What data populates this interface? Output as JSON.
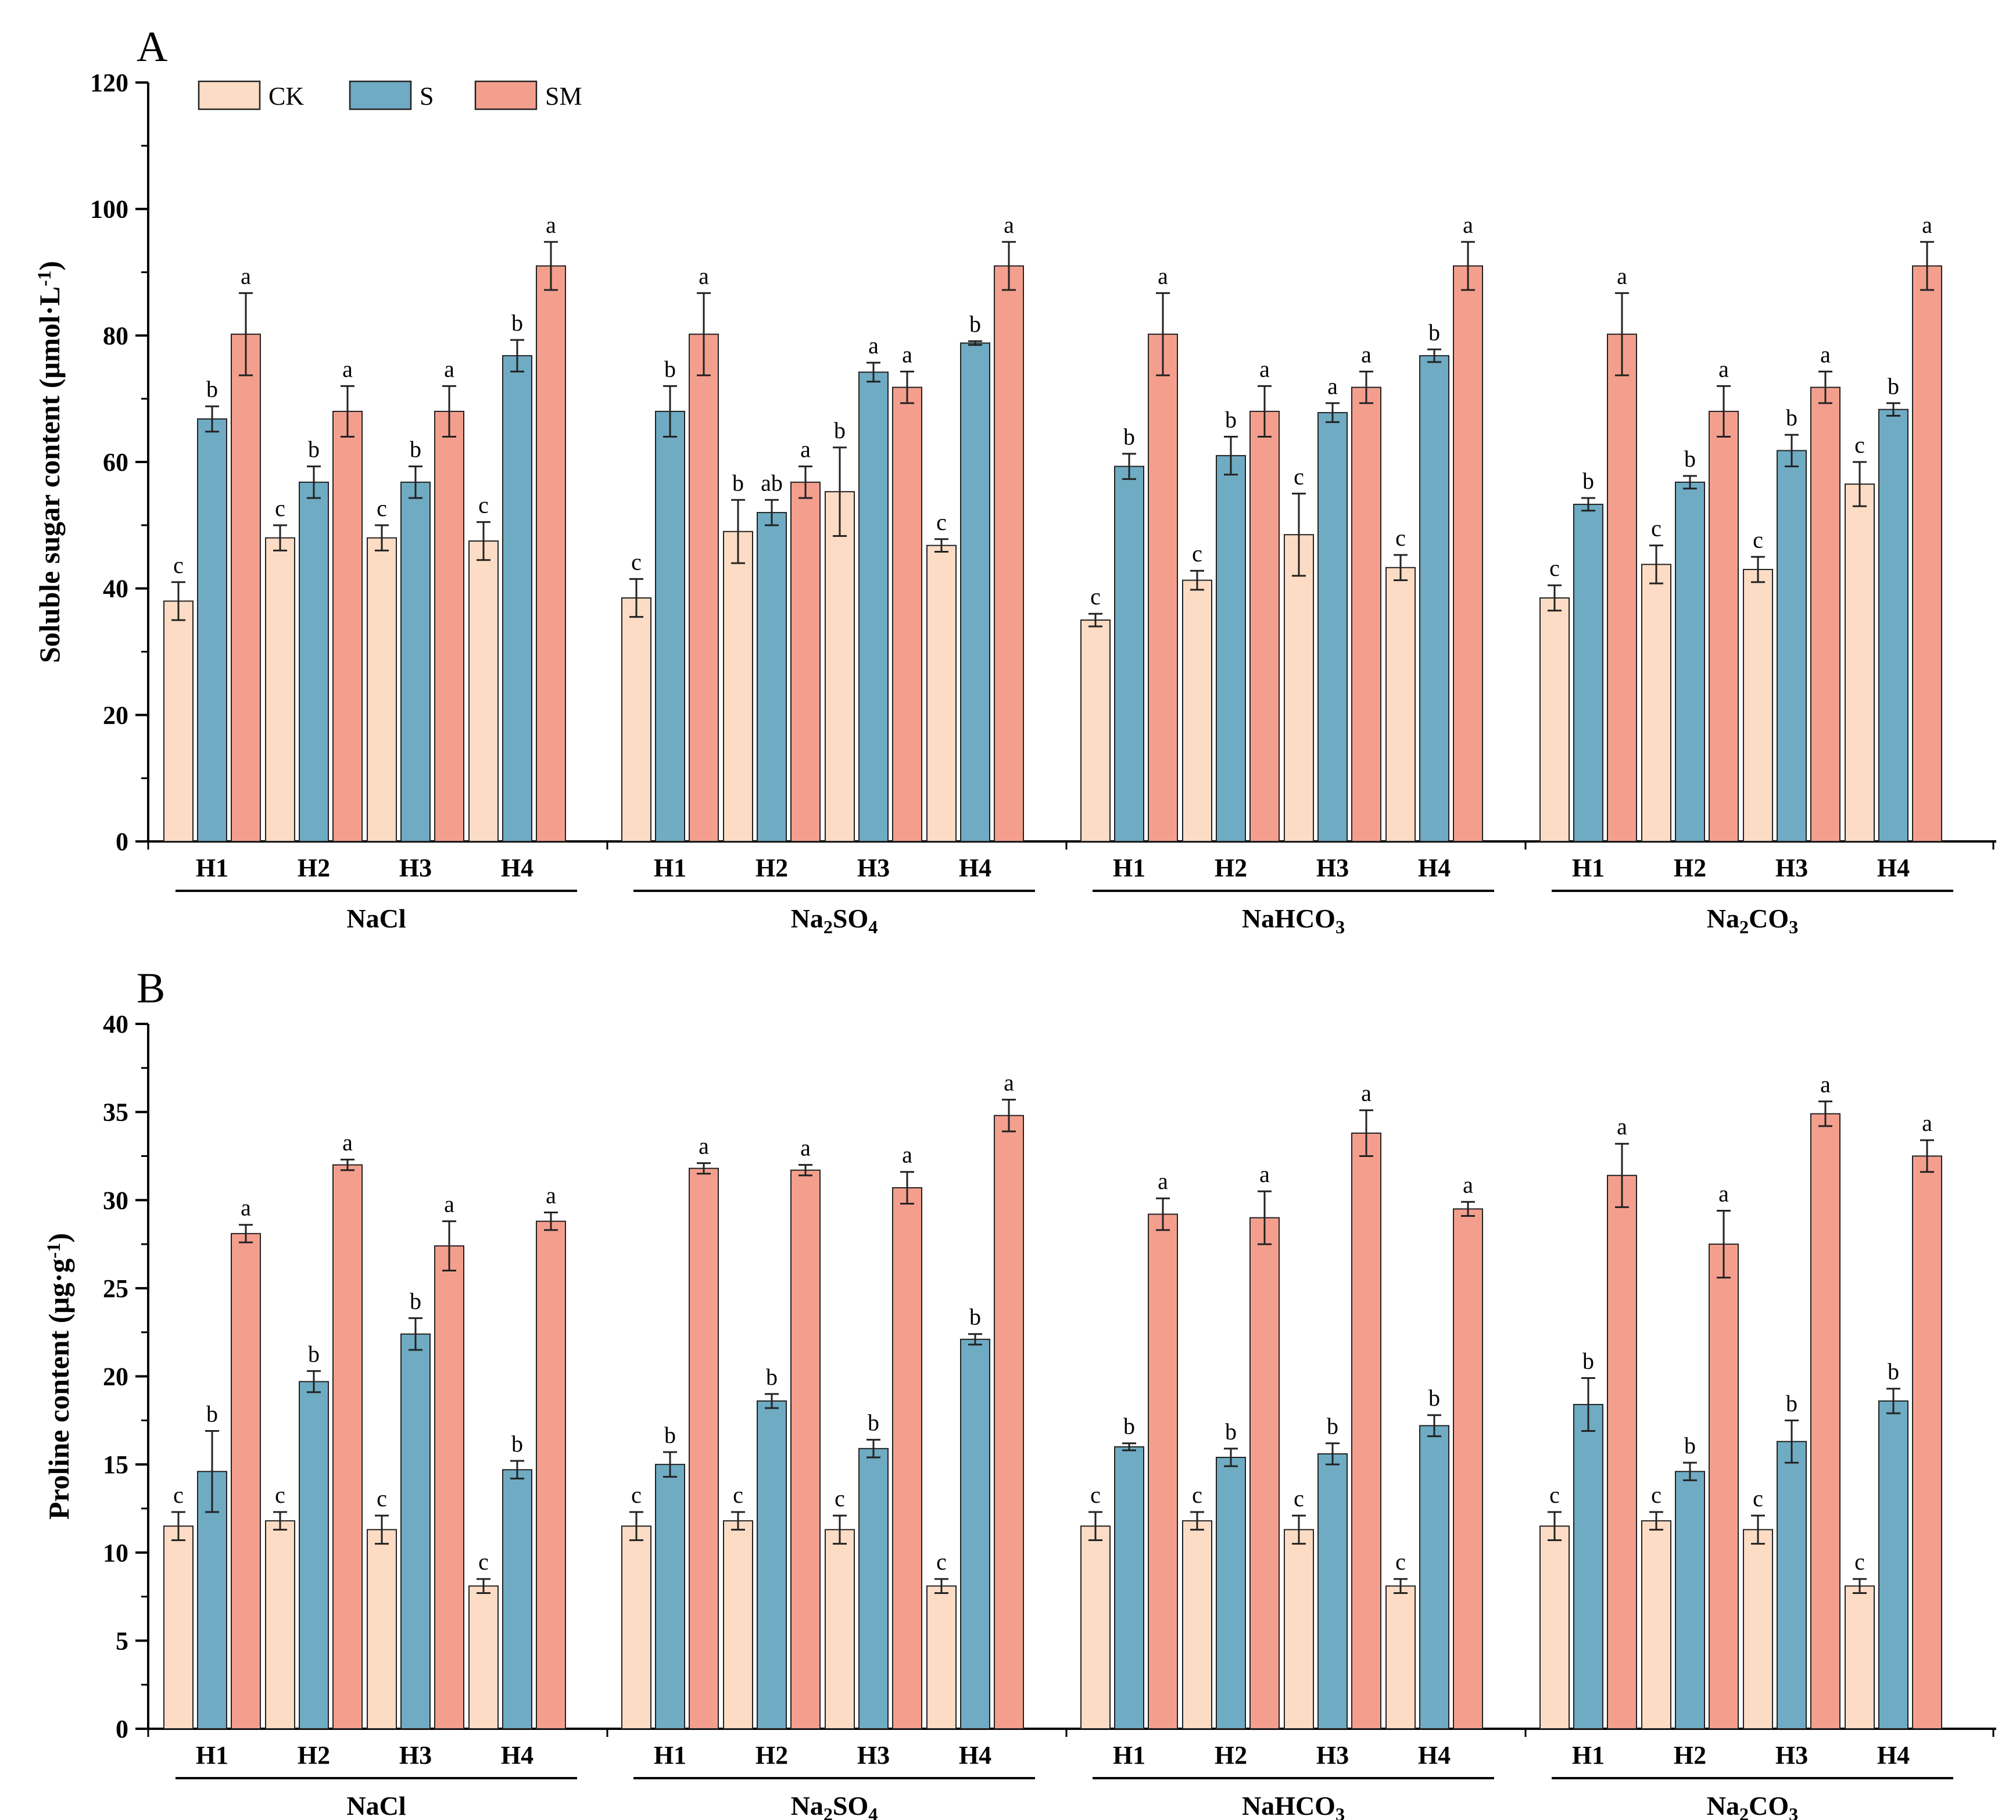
{
  "colors": {
    "CK": "#fcdcc4",
    "S": "#6fabc3",
    "SM": "#f49f8e"
  },
  "legend": [
    {
      "key": "CK",
      "label": "CK"
    },
    {
      "key": "S",
      "label": "S"
    },
    {
      "key": "SM",
      "label": "SM"
    }
  ],
  "chart_data": [
    {
      "type": "bar",
      "panel": "A",
      "ylabel": "Soluble sugar content (μmol·L⁻¹)",
      "ylim": [
        0,
        120
      ],
      "yticks": [
        0,
        20,
        40,
        60,
        80,
        100,
        120
      ],
      "groups": [
        "NaCl",
        "Na₂SO₄",
        "NaHCO₃",
        "Na₂CO₃"
      ],
      "categories": [
        "H1",
        "H2",
        "H3",
        "H4"
      ],
      "series": [
        {
          "name": "CK",
          "values": [
            [
              38.0,
              48.0,
              48.0,
              47.5
            ],
            [
              38.5,
              49.0,
              55.3,
              46.8
            ],
            [
              35.0,
              41.3,
              48.5,
              43.3
            ],
            [
              38.5,
              43.8,
              43.0,
              56.5
            ]
          ],
          "errors": [
            [
              3.0,
              2.0,
              2.0,
              3.0
            ],
            [
              3.0,
              5.0,
              7.0,
              1.0
            ],
            [
              1.0,
              1.5,
              6.5,
              2.0
            ],
            [
              2.0,
              3.0,
              2.0,
              3.5
            ]
          ],
          "labels": [
            [
              "c",
              "c",
              "c",
              "c"
            ],
            [
              "c",
              "b",
              "b",
              "c"
            ],
            [
              "c",
              "c",
              "c",
              "c"
            ],
            [
              "c",
              "c",
              "c",
              "c"
            ]
          ]
        },
        {
          "name": "S",
          "values": [
            [
              66.8,
              56.8,
              56.8,
              76.8
            ],
            [
              68.0,
              52.0,
              74.2,
              78.8
            ],
            [
              59.3,
              61.0,
              67.8,
              76.8
            ],
            [
              53.3,
              56.8,
              61.8,
              68.3
            ]
          ],
          "errors": [
            [
              2.0,
              2.5,
              2.5,
              2.5
            ],
            [
              4.0,
              2.0,
              1.5,
              0.3
            ],
            [
              2.0,
              3.0,
              1.5,
              1.0
            ],
            [
              1.0,
              1.0,
              2.5,
              1.0
            ]
          ],
          "labels": [
            [
              "b",
              "b",
              "b",
              "b"
            ],
            [
              "b",
              "ab",
              "a",
              "b"
            ],
            [
              "b",
              "b",
              "a",
              "b"
            ],
            [
              "b",
              "b",
              "b",
              "b"
            ]
          ]
        },
        {
          "name": "SM",
          "values": [
            [
              80.2,
              68.0,
              68.0,
              91.0
            ],
            [
              80.2,
              56.8,
              71.8,
              91.0
            ],
            [
              80.2,
              68.0,
              71.8,
              91.0
            ],
            [
              80.2,
              68.0,
              71.8,
              91.0
            ]
          ],
          "errors": [
            [
              6.5,
              4.0,
              4.0,
              3.8
            ],
            [
              6.5,
              2.5,
              2.5,
              3.8
            ],
            [
              6.5,
              4.0,
              2.5,
              3.8
            ],
            [
              6.5,
              4.0,
              2.5,
              3.8
            ]
          ],
          "labels": [
            [
              "a",
              "a",
              "a",
              "a"
            ],
            [
              "a",
              "a",
              "a",
              "a"
            ],
            [
              "a",
              "a",
              "a",
              "a"
            ],
            [
              "a",
              "a",
              "a",
              "a"
            ]
          ]
        }
      ]
    },
    {
      "type": "bar",
      "panel": "B",
      "ylabel": "Proline content (μg·g⁻¹)",
      "ylim": [
        0,
        40
      ],
      "yticks": [
        0,
        5,
        10,
        15,
        20,
        25,
        30,
        35,
        40
      ],
      "groups": [
        "NaCl",
        "Na₂SO₄",
        "NaHCO₃",
        "Na₂CO₃"
      ],
      "categories": [
        "H1",
        "H2",
        "H3",
        "H4"
      ],
      "series": [
        {
          "name": "CK",
          "values": [
            [
              11.5,
              11.8,
              11.3,
              8.1
            ],
            [
              11.5,
              11.8,
              11.3,
              8.1
            ],
            [
              11.5,
              11.8,
              11.3,
              8.1
            ],
            [
              11.5,
              11.8,
              11.3,
              8.1
            ]
          ],
          "errors": [
            [
              0.8,
              0.5,
              0.8,
              0.4
            ],
            [
              0.8,
              0.5,
              0.8,
              0.4
            ],
            [
              0.8,
              0.5,
              0.8,
              0.4
            ],
            [
              0.8,
              0.5,
              0.8,
              0.4
            ]
          ],
          "labels": [
            [
              "c",
              "c",
              "c",
              "c"
            ],
            [
              "c",
              "c",
              "c",
              "c"
            ],
            [
              "c",
              "c",
              "c",
              "c"
            ],
            [
              "c",
              "c",
              "c",
              "c"
            ]
          ]
        },
        {
          "name": "S",
          "values": [
            [
              14.6,
              19.7,
              22.4,
              14.7
            ],
            [
              15.0,
              18.6,
              15.9,
              22.1
            ],
            [
              16.0,
              15.4,
              15.6,
              17.2
            ],
            [
              18.4,
              14.6,
              16.3,
              18.6
            ]
          ],
          "errors": [
            [
              2.3,
              0.6,
              0.9,
              0.5
            ],
            [
              0.7,
              0.4,
              0.5,
              0.3
            ],
            [
              0.2,
              0.5,
              0.6,
              0.6
            ],
            [
              1.5,
              0.5,
              1.2,
              0.7
            ]
          ],
          "labels": [
            [
              "b",
              "b",
              "b",
              "b"
            ],
            [
              "b",
              "b",
              "b",
              "b"
            ],
            [
              "b",
              "b",
              "b",
              "b"
            ],
            [
              "b",
              "b",
              "b",
              "b"
            ]
          ]
        },
        {
          "name": "SM",
          "values": [
            [
              28.1,
              32.0,
              27.4,
              28.8
            ],
            [
              31.8,
              31.7,
              30.7,
              34.8
            ],
            [
              29.2,
              29.0,
              33.8,
              29.5
            ],
            [
              31.4,
              27.5,
              34.9,
              32.5
            ]
          ],
          "errors": [
            [
              0.5,
              0.3,
              1.4,
              0.5
            ],
            [
              0.3,
              0.3,
              0.9,
              0.9
            ],
            [
              0.9,
              1.5,
              1.3,
              0.4
            ],
            [
              1.8,
              1.9,
              0.7,
              0.9
            ]
          ],
          "labels": [
            [
              "a",
              "a",
              "a",
              "a"
            ],
            [
              "a",
              "a",
              "a",
              "a"
            ],
            [
              "a",
              "a",
              "a",
              "a"
            ],
            [
              "a",
              "a",
              "a",
              "a"
            ]
          ]
        }
      ]
    }
  ]
}
